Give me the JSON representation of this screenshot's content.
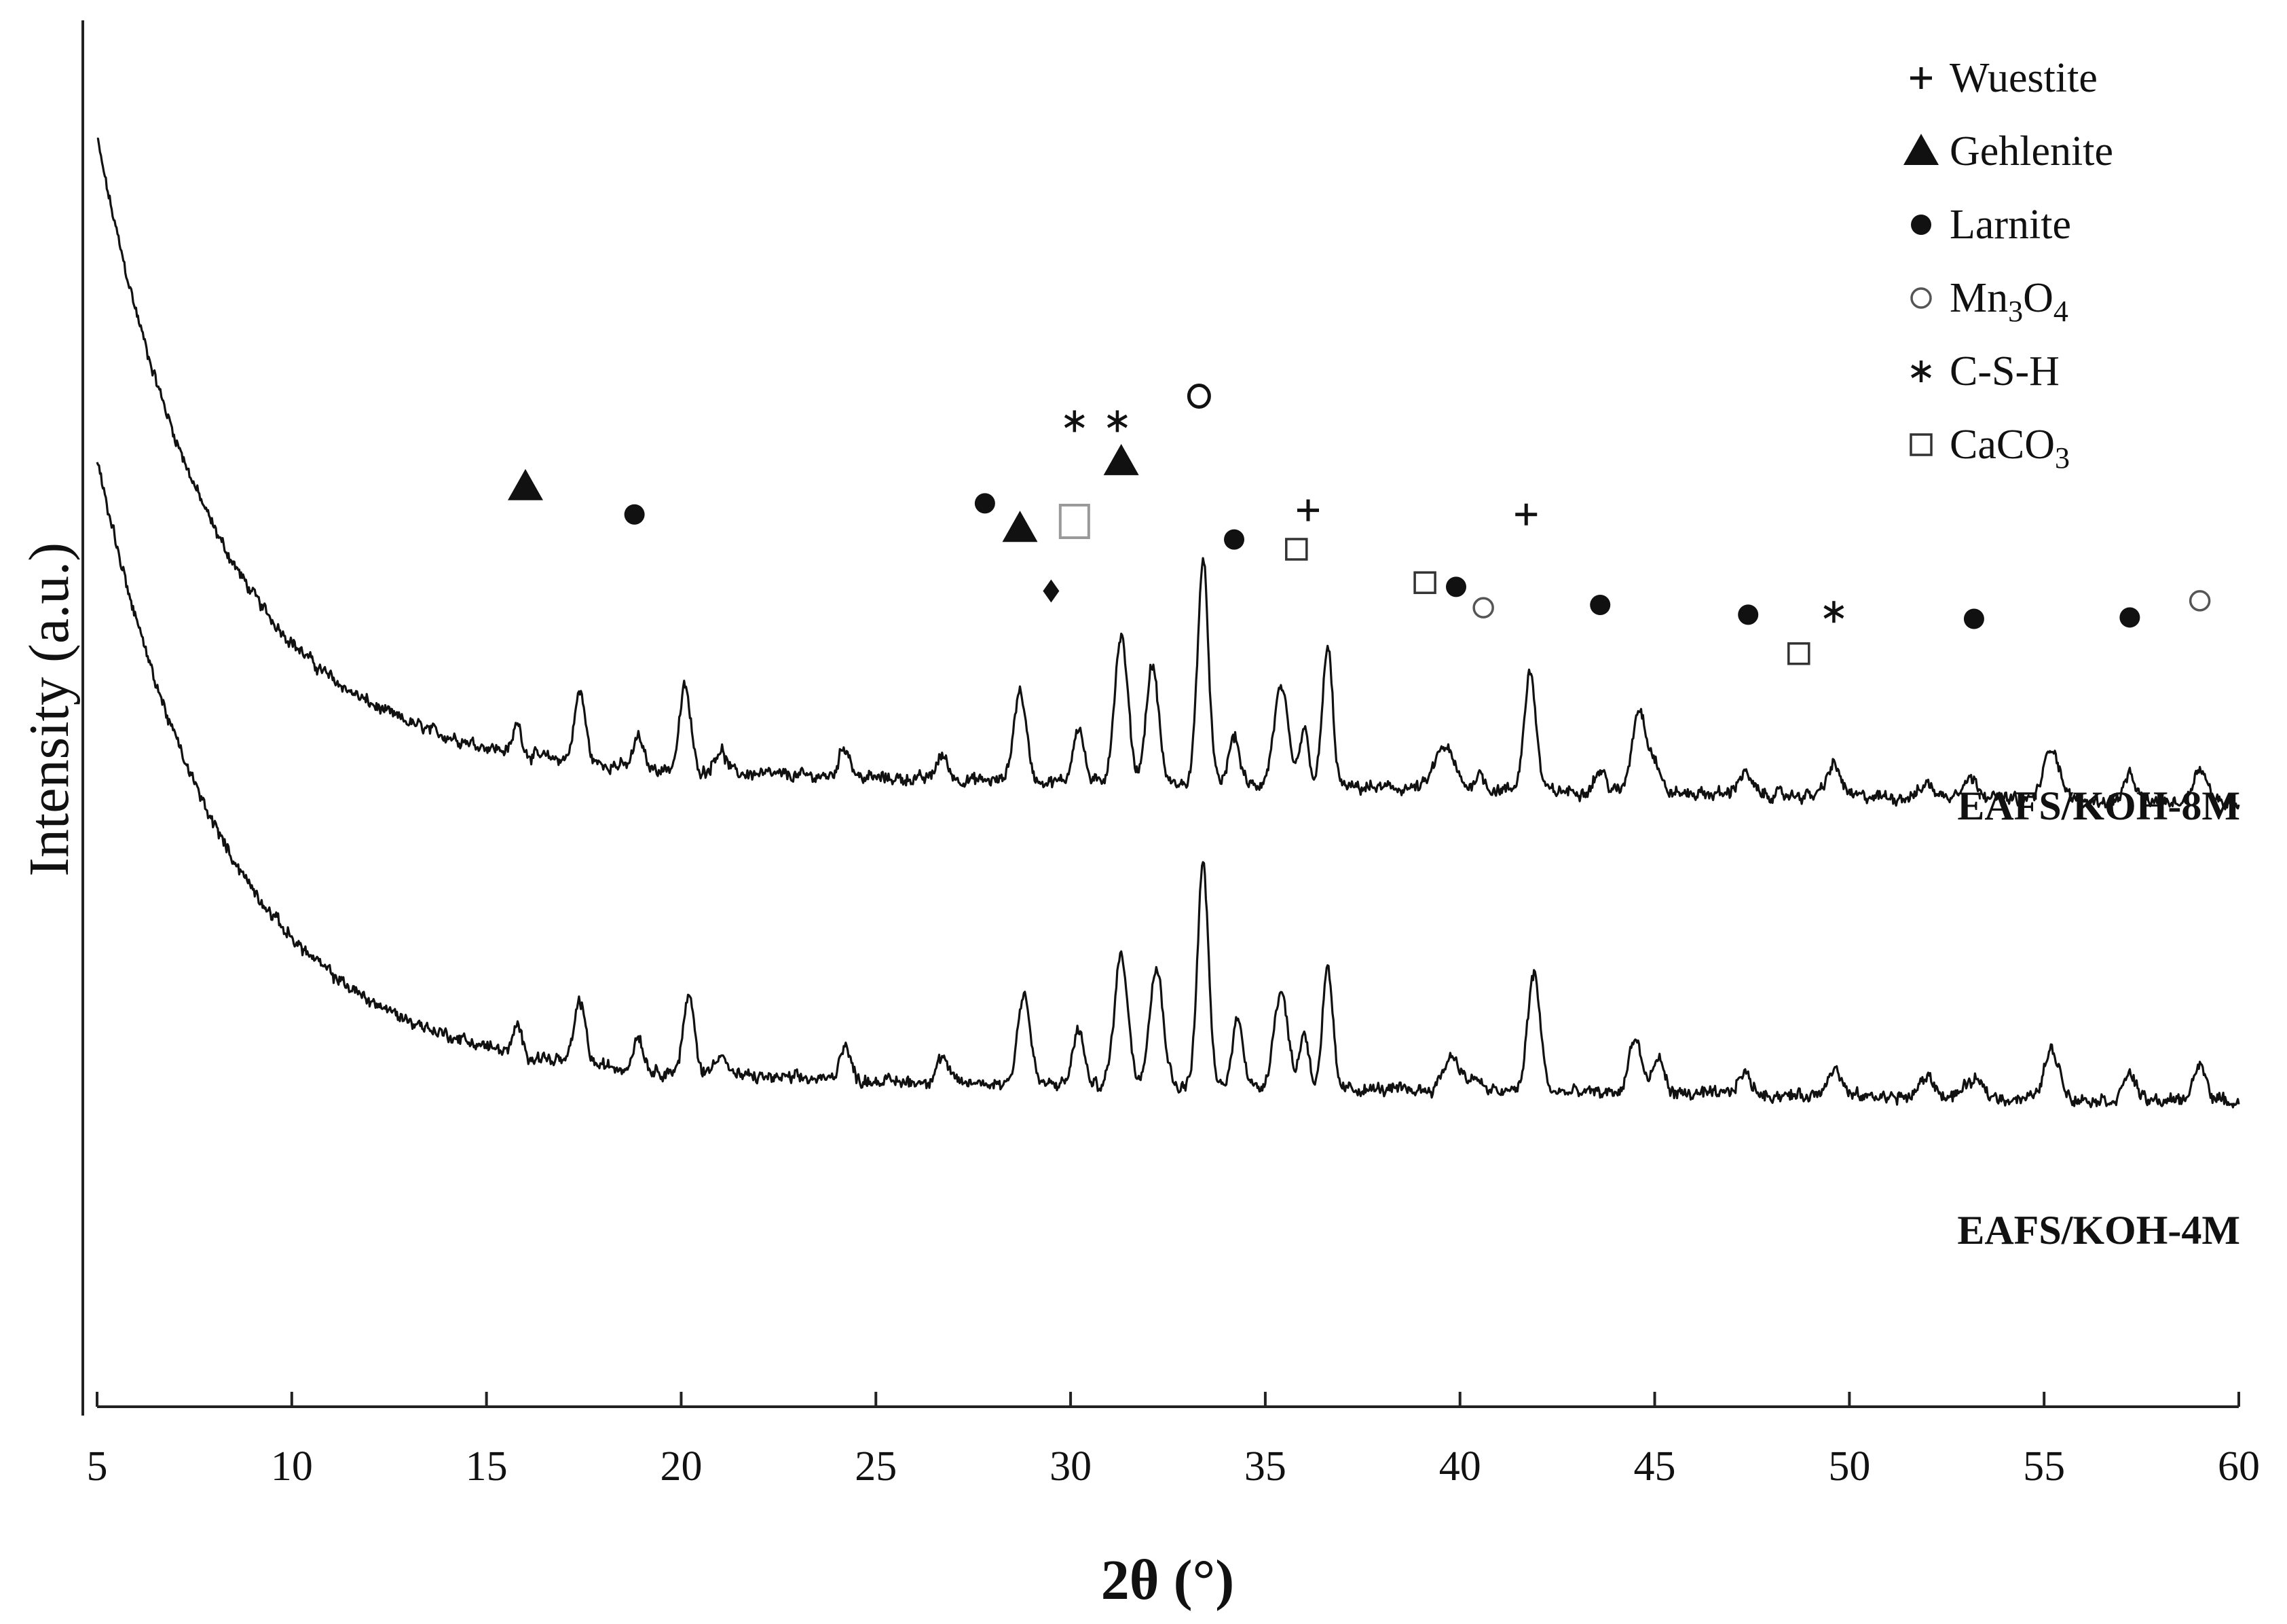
{
  "chart_data": {
    "type": "line",
    "title": "",
    "xlabel": "2θ (°)",
    "ylabel": "Intensity (a.u.)",
    "xlim": [
      5,
      60
    ],
    "ylim": [
      0,
      100
    ],
    "x_ticks": [
      5,
      10,
      15,
      20,
      25,
      30,
      35,
      40,
      45,
      50,
      55,
      60
    ],
    "grid": false,
    "legend_position": "top-right",
    "legend": [
      {
        "symbol": "plus",
        "label": "Wuestite"
      },
      {
        "symbol": "triangle",
        "label": "Gehlenite"
      },
      {
        "symbol": "filled-circle",
        "label": "Larnite"
      },
      {
        "symbol": "open-circle",
        "label": "Mn",
        "sub1": "3",
        "mid": "O",
        "sub2": "4"
      },
      {
        "symbol": "asterisk",
        "label": "C-S-H"
      },
      {
        "symbol": "open-square",
        "label": "CaCO",
        "sub1": "3"
      }
    ],
    "series": [
      {
        "name": "EAFS/KOH-8M",
        "baseline": {
          "a": 46.5,
          "b": 45.0,
          "k": 0.32,
          "slope": -0.05,
          "noise": 0.55
        },
        "peaks": [
          [
            15.8,
            2.2,
            0.1
          ],
          [
            17.4,
            5.0,
            0.14
          ],
          [
            18.9,
            2.2,
            0.12
          ],
          [
            20.1,
            6.0,
            0.14
          ],
          [
            21.0,
            1.6,
            0.15
          ],
          [
            24.2,
            2.2,
            0.14
          ],
          [
            26.7,
            1.7,
            0.15
          ],
          [
            28.7,
            6.5,
            0.16
          ],
          [
            30.2,
            4.0,
            0.14
          ],
          [
            31.3,
            10.5,
            0.17
          ],
          [
            32.1,
            8.5,
            0.16
          ],
          [
            33.4,
            16.0,
            0.14
          ],
          [
            34.2,
            3.5,
            0.14
          ],
          [
            35.4,
            7.0,
            0.18
          ],
          [
            36.0,
            4.0,
            0.12
          ],
          [
            36.6,
            10.0,
            0.13
          ],
          [
            39.6,
            3.0,
            0.25
          ],
          [
            40.5,
            1.2,
            0.12
          ],
          [
            41.8,
            8.5,
            0.15
          ],
          [
            43.6,
            1.5,
            0.15
          ],
          [
            44.6,
            6.0,
            0.18
          ],
          [
            45.0,
            2.0,
            0.15
          ],
          [
            47.3,
            1.5,
            0.18
          ],
          [
            49.6,
            2.2,
            0.18
          ],
          [
            52.0,
            1.0,
            0.18
          ],
          [
            53.1,
            1.4,
            0.25
          ],
          [
            55.2,
            3.8,
            0.2
          ],
          [
            57.2,
            1.8,
            0.15
          ],
          [
            59.0,
            2.5,
            0.18
          ]
        ],
        "markers": [
          {
            "x": 16.0,
            "y": 66.5,
            "symbol": "triangle"
          },
          {
            "x": 18.8,
            "y": 64.5,
            "symbol": "filled-circle"
          },
          {
            "x": 27.8,
            "y": 65.3,
            "symbol": "filled-circle"
          },
          {
            "x": 28.7,
            "y": 63.5,
            "symbol": "triangle"
          },
          {
            "x": 29.5,
            "y": 59.0,
            "symbol": "diamond"
          },
          {
            "x": 30.1,
            "y": 64.0,
            "symbol": "open-square-gray"
          },
          {
            "x": 30.1,
            "y": 71.2,
            "symbol": "asterisk"
          },
          {
            "x": 31.2,
            "y": 71.2,
            "symbol": "asterisk"
          },
          {
            "x": 31.3,
            "y": 68.3,
            "symbol": "triangle"
          },
          {
            "x": 33.3,
            "y": 73.0,
            "symbol": "o-letter"
          },
          {
            "x": 34.2,
            "y": 62.7,
            "symbol": "filled-circle"
          },
          {
            "x": 35.8,
            "y": 62.0,
            "symbol": "open-square"
          },
          {
            "x": 36.1,
            "y": 64.8,
            "symbol": "plus"
          },
          {
            "x": 39.1,
            "y": 59.6,
            "symbol": "open-square"
          },
          {
            "x": 39.9,
            "y": 59.3,
            "symbol": "filled-circle"
          },
          {
            "x": 40.6,
            "y": 57.8,
            "symbol": "open-circle"
          },
          {
            "x": 41.7,
            "y": 64.5,
            "symbol": "plus"
          },
          {
            "x": 43.6,
            "y": 58.0,
            "symbol": "filled-circle"
          },
          {
            "x": 47.4,
            "y": 57.3,
            "symbol": "filled-circle"
          },
          {
            "x": 48.7,
            "y": 54.5,
            "symbol": "open-square"
          },
          {
            "x": 49.6,
            "y": 57.5,
            "symbol": "asterisk"
          },
          {
            "x": 53.2,
            "y": 57.0,
            "symbol": "filled-circle"
          },
          {
            "x": 57.2,
            "y": 57.1,
            "symbol": "filled-circle"
          },
          {
            "x": 59.0,
            "y": 58.3,
            "symbol": "open-circle"
          }
        ]
      },
      {
        "name": "EAFS/KOH-4M",
        "baseline": {
          "a": 24.5,
          "b": 44.0,
          "k": 0.3,
          "slope": -0.04,
          "noise": 0.55
        },
        "peaks": [
          [
            15.8,
            2.0,
            0.1
          ],
          [
            17.4,
            4.5,
            0.14
          ],
          [
            18.9,
            2.5,
            0.12
          ],
          [
            20.2,
            5.5,
            0.14
          ],
          [
            21.0,
            1.6,
            0.15
          ],
          [
            24.2,
            2.5,
            0.14
          ],
          [
            26.7,
            1.8,
            0.15
          ],
          [
            28.8,
            6.5,
            0.16
          ],
          [
            30.2,
            4.0,
            0.14
          ],
          [
            31.3,
            9.5,
            0.17
          ],
          [
            32.2,
            8.5,
            0.18
          ],
          [
            33.4,
            16.0,
            0.14
          ],
          [
            34.3,
            5.0,
            0.14
          ],
          [
            35.4,
            7.0,
            0.18
          ],
          [
            36.0,
            4.0,
            0.12
          ],
          [
            36.6,
            8.5,
            0.13
          ],
          [
            39.8,
            2.5,
            0.22
          ],
          [
            40.4,
            1.0,
            0.12
          ],
          [
            41.9,
            8.5,
            0.16
          ],
          [
            44.5,
            4.0,
            0.16
          ],
          [
            45.1,
            2.5,
            0.15
          ],
          [
            47.3,
            1.5,
            0.18
          ],
          [
            49.6,
            2.0,
            0.18
          ],
          [
            52.0,
            1.5,
            0.18
          ],
          [
            53.2,
            1.2,
            0.25
          ],
          [
            55.2,
            3.5,
            0.2
          ],
          [
            57.2,
            2.0,
            0.15
          ],
          [
            59.0,
            2.5,
            0.18
          ]
        ]
      }
    ]
  }
}
